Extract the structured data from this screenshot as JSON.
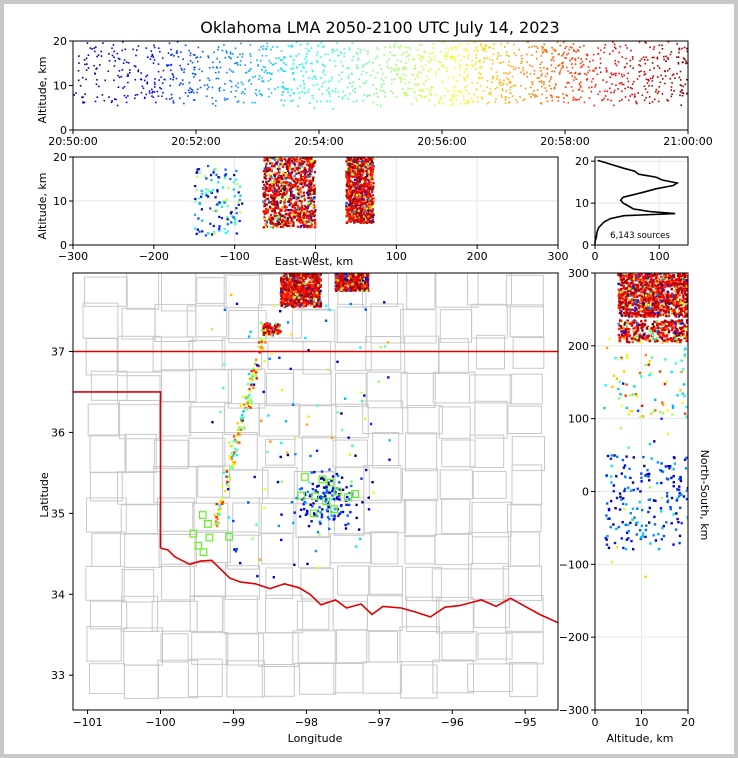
{
  "chart_data": [
    {
      "panel": "altitude-vs-time",
      "type": "scatter",
      "title": "Oklahoma LMA 2050-2100 UTC July 14, 2023",
      "ylabel": "Altitude, km",
      "xticks": [
        "20:50:00",
        "20:52:00",
        "20:54:00",
        "20:56:00",
        "20:58:00",
        "21:00:00"
      ],
      "xlim_minutes": [
        0,
        10
      ],
      "yticks": [
        0,
        10,
        20
      ],
      "ylim": [
        0,
        20
      ],
      "color_scale": "time (blue early → dark red late)"
    },
    {
      "panel": "altitude-vs-east-west",
      "type": "scatter",
      "xlabel": "East-West, km",
      "ylabel": "Altitude, km",
      "xticks": [
        -300,
        -200,
        -100,
        0,
        100,
        200,
        300
      ],
      "xlim": [
        -300,
        300
      ],
      "yticks": [
        0,
        10,
        20
      ],
      "ylim": [
        0,
        20
      ],
      "clusters": [
        {
          "x_range": [
            -65,
            0
          ],
          "z_range": [
            4,
            20
          ],
          "density": "dense"
        },
        {
          "x_range": [
            38,
            72
          ],
          "z_range": [
            5,
            20
          ],
          "density": "dense"
        },
        {
          "x_range": [
            -150,
            -90
          ],
          "z_range": [
            2,
            18
          ],
          "density": "sparse"
        }
      ]
    },
    {
      "panel": "altitude-histogram",
      "type": "line",
      "annotation": "6,143 sources",
      "xticks": [
        0,
        100
      ],
      "xlim": [
        0,
        145
      ],
      "yticks": [
        0,
        10,
        20
      ],
      "ylim": [
        0,
        21
      ],
      "profile": [
        [
          0.2,
          0
        ],
        [
          0.8,
          0
        ],
        [
          1.8,
          2
        ],
        [
          3,
          3
        ],
        [
          4.2,
          6
        ],
        [
          5.5,
          14
        ],
        [
          6.3,
          24
        ],
        [
          7,
          45
        ],
        [
          7.5,
          125
        ],
        [
          8,
          85
        ],
        [
          8.6,
          60
        ],
        [
          9.3,
          52
        ],
        [
          10,
          44
        ],
        [
          10.7,
          40
        ],
        [
          11.4,
          44
        ],
        [
          12,
          60
        ],
        [
          12.7,
          78
        ],
        [
          13.4,
          95
        ],
        [
          14.2,
          122
        ],
        [
          14.8,
          128
        ],
        [
          15.5,
          105
        ],
        [
          16.2,
          95
        ],
        [
          16.9,
          68
        ],
        [
          17.6,
          62
        ],
        [
          18.3,
          45
        ],
        [
          19,
          30
        ],
        [
          19.7,
          15
        ],
        [
          20.2,
          4
        ]
      ]
    },
    {
      "panel": "plan-view-map",
      "type": "scatter",
      "xlabel": "Longitude",
      "ylabel": "Latitude",
      "xticks": [
        -101,
        -100,
        -99,
        -98,
        -97,
        -96,
        -95
      ],
      "xlim": [
        -101.2,
        -94.55
      ],
      "yticks": [
        33,
        34,
        35,
        36,
        37
      ],
      "ylim": [
        32.57,
        37.97
      ],
      "stations": [
        [
          -98.02,
          35.45
        ],
        [
          -97.78,
          35.42
        ],
        [
          -97.67,
          35.38
        ],
        [
          -97.57,
          35.27
        ],
        [
          -97.88,
          35.21
        ],
        [
          -98.07,
          35.22
        ],
        [
          -97.73,
          35.15
        ],
        [
          -97.43,
          35.2
        ],
        [
          -97.33,
          35.24
        ],
        [
          -97.62,
          35.05
        ],
        [
          -97.9,
          35.0
        ],
        [
          -99.42,
          34.98
        ],
        [
          -99.35,
          34.87
        ],
        [
          -99.33,
          34.7
        ],
        [
          -99.55,
          34.75
        ],
        [
          -99.48,
          34.6
        ],
        [
          -99.41,
          34.52
        ],
        [
          -99.06,
          34.71
        ]
      ]
    },
    {
      "panel": "north-south-vs-altitude",
      "type": "scatter",
      "xlabel": "Altitude, km",
      "ylabel": "North-South, km",
      "xticks": [
        0,
        10,
        20
      ],
      "xlim": [
        0,
        20
      ],
      "yticks": [
        -300,
        -200,
        -100,
        0,
        100,
        200,
        300
      ],
      "ylim": [
        -300,
        300
      ]
    }
  ],
  "colors": {
    "state_border": "#e00000",
    "county_lines": "#c8c8c8",
    "station_marker": "#66ee22",
    "histogram_line": "#000000"
  }
}
